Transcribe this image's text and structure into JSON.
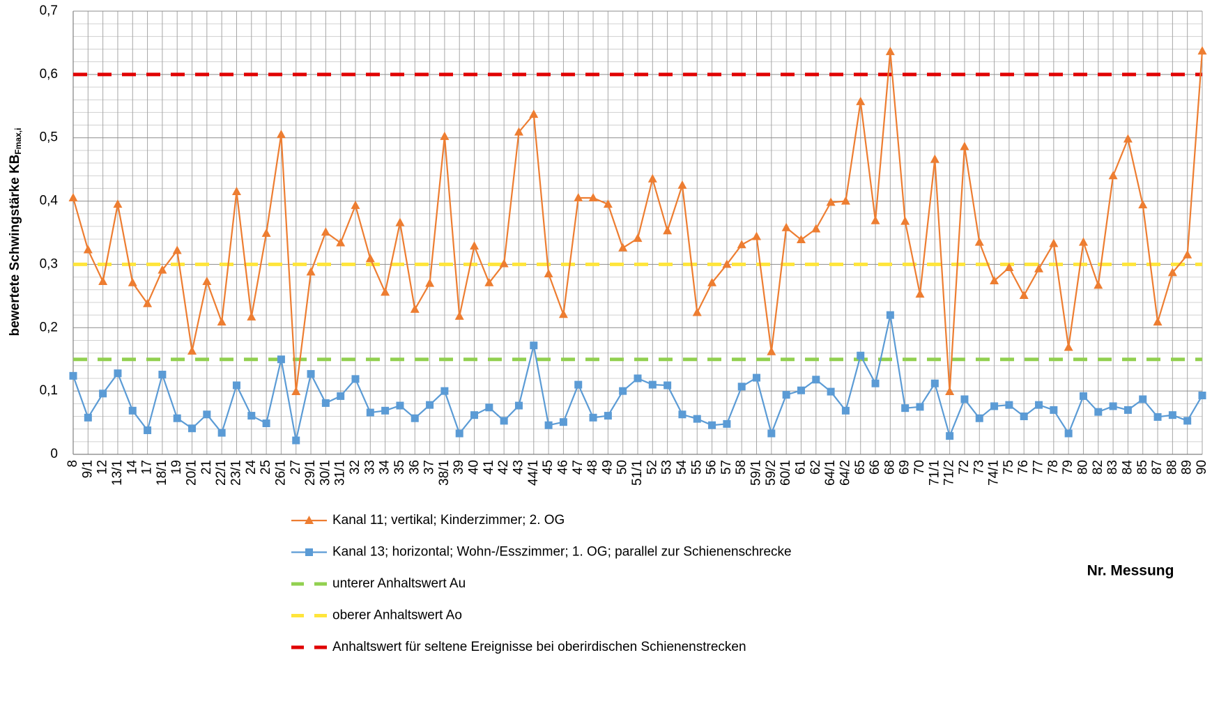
{
  "chart_data": {
    "type": "line",
    "y_axis_label": "bewertete Schwingstärke KB",
    "y_axis_label_sub": "Fmax,i",
    "x_axis_label": "Nr. Messung",
    "categories": [
      "8",
      "9/1",
      "12",
      "13/1",
      "14",
      "17",
      "18/1",
      "19",
      "20/1",
      "21",
      "22/1",
      "23/1",
      "24",
      "25",
      "26/1",
      "27",
      "29/1",
      "30/1",
      "31/1",
      "32",
      "33",
      "34",
      "35",
      "36",
      "37",
      "38/1",
      "39",
      "40",
      "41",
      "42",
      "43",
      "44/1",
      "45",
      "46",
      "47",
      "48",
      "49",
      "50",
      "51/1",
      "52",
      "53",
      "54",
      "55",
      "56",
      "57",
      "58",
      "59/1",
      "59/2",
      "60/1",
      "61",
      "62",
      "64/1",
      "64/2",
      "65",
      "66",
      "68",
      "69",
      "70",
      "71/1",
      "71/2",
      "72",
      "73",
      "74/1",
      "75",
      "76",
      "77",
      "78",
      "79",
      "80",
      "82",
      "83",
      "84",
      "85",
      "87",
      "88",
      "89",
      "90"
    ],
    "series": [
      {
        "name": "Kanal 11; vertikal; Kinderzimmer; 2. OG",
        "color": "#ed7d31",
        "marker": "triangle",
        "values": [
          0.405,
          0.323,
          0.273,
          0.395,
          0.271,
          0.238,
          0.291,
          0.322,
          0.163,
          0.273,
          0.209,
          0.415,
          0.217,
          0.349,
          0.505,
          0.099,
          0.288,
          0.351,
          0.334,
          0.393,
          0.309,
          0.256,
          0.366,
          0.229,
          0.27,
          0.502,
          0.218,
          0.329,
          0.271,
          0.301,
          0.509,
          0.537,
          0.285,
          0.221,
          0.405,
          0.405,
          0.395,
          0.326,
          0.341,
          0.435,
          0.353,
          0.425,
          0.224,
          0.271,
          0.3,
          0.331,
          0.344,
          0.162,
          0.358,
          0.339,
          0.356,
          0.398,
          0.4,
          0.557,
          0.369,
          0.636,
          0.368,
          0.253,
          0.466,
          0.099,
          0.486,
          0.335,
          0.274,
          0.295,
          0.251,
          0.293,
          0.333,
          0.169,
          0.335,
          0.267,
          0.44,
          0.498,
          0.394,
          0.209,
          0.287,
          0.315,
          0.637
        ]
      },
      {
        "name": "Kanal 13; horizontal; Wohn-/Esszimmer; 1. OG; parallel zur Schienenschrecke",
        "color": "#5b9bd5",
        "marker": "square",
        "values": [
          0.124,
          0.058,
          0.096,
          0.128,
          0.069,
          0.038,
          0.126,
          0.057,
          0.041,
          0.063,
          0.034,
          0.109,
          0.061,
          0.049,
          0.15,
          0.022,
          0.127,
          0.081,
          0.092,
          0.119,
          0.066,
          0.069,
          0.077,
          0.057,
          0.078,
          0.1,
          0.033,
          0.062,
          0.074,
          0.053,
          0.077,
          0.172,
          0.046,
          0.051,
          0.11,
          0.058,
          0.061,
          0.1,
          0.12,
          0.11,
          0.109,
          0.063,
          0.056,
          0.046,
          0.048,
          0.107,
          0.121,
          0.033,
          0.094,
          0.101,
          0.118,
          0.099,
          0.069,
          0.156,
          0.112,
          0.22,
          0.073,
          0.075,
          0.112,
          0.029,
          0.087,
          0.057,
          0.076,
          0.078,
          0.06,
          0.078,
          0.07,
          0.033,
          0.092,
          0.067,
          0.076,
          0.07,
          0.087,
          0.059,
          0.062,
          0.053,
          0.093
        ]
      }
    ],
    "reference_lines": [
      {
        "name": "unterer Anhaltswert Au",
        "color": "#92d050",
        "value": 0.15
      },
      {
        "name": "oberer Anhaltswert Ao",
        "color": "#ffe53b",
        "value": 0.3
      },
      {
        "name": "Anhaltswert für seltene Ereignisse bei oberirdischen Schienenstrecken",
        "color": "#e00000",
        "value": 0.6
      }
    ],
    "ylim": [
      0,
      0.7
    ],
    "yticks": [
      0,
      {
        "value": 0.1,
        "label": "0,1"
      },
      {
        "value": 0.2,
        "label": "0,2"
      },
      {
        "value": 0.3,
        "label": "0,3"
      },
      {
        "value": 0.4,
        "label": "0,4"
      },
      {
        "value": 0.5,
        "label": "0,5"
      },
      {
        "value": 0.6,
        "label": "0,6"
      },
      {
        "value": 0.7,
        "label": "0,7"
      }
    ],
    "grid": true,
    "legend": "bottom"
  }
}
